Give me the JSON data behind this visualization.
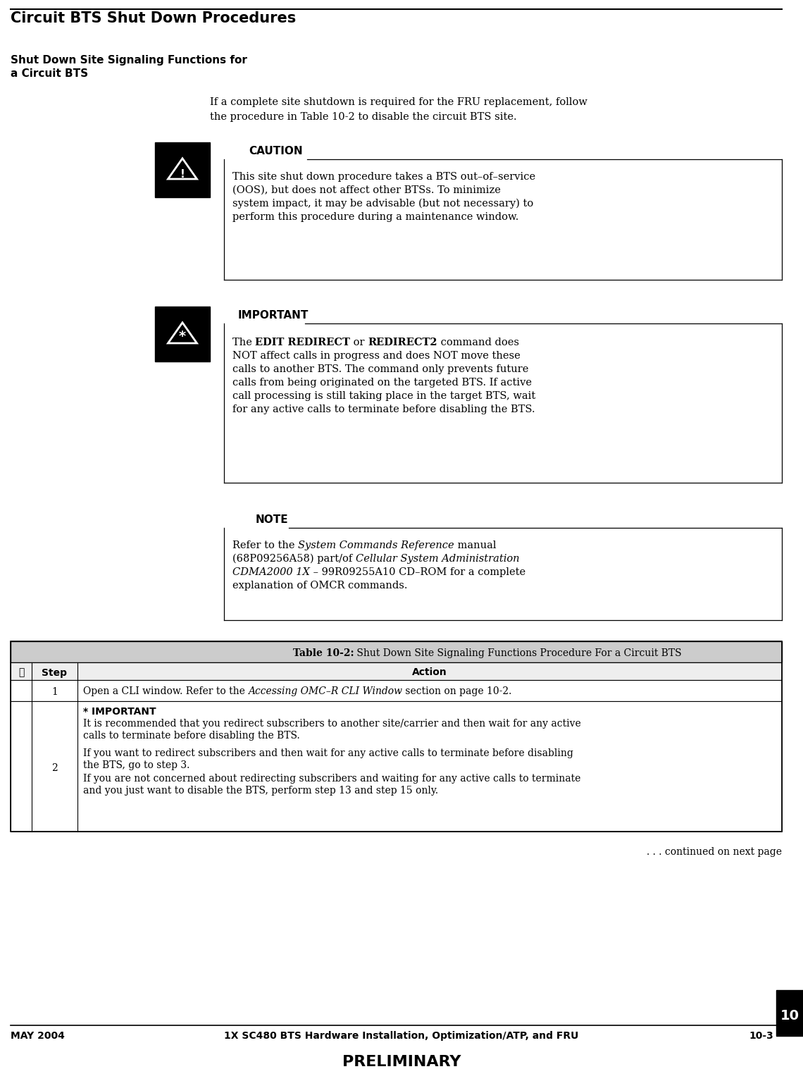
{
  "page_title": "Circuit BTS Shut Down Procedures",
  "section_title_line1": "Shut Down Site Signaling Functions for",
  "section_title_line2": "a Circuit BTS",
  "intro_line1": "If a complete site shutdown is required for the FRU replacement, follow",
  "intro_line2": "the procedure in Table 10-2 to disable the circuit BTS site.",
  "caution_title": "CAUTION",
  "caution_text_lines": [
    "This site shut down procedure takes a BTS out–of–service",
    "(OOS), but does not affect other BTSs. To minimize",
    "system impact, it may be advisable (but not necessary) to",
    "perform this procedure during a maintenance window."
  ],
  "important_title": "IMPORTANT",
  "imp_line1_pre": "The ",
  "imp_line1_bold1": "EDIT REDIRECT",
  "imp_line1_mid": " or ",
  "imp_line1_bold2": "REDIRECT2",
  "imp_line1_post": " command does",
  "imp_lines_rest": [
    "NOT affect calls in progress and does NOT move these",
    "calls to another BTS. The command only prevents future",
    "calls from being originated on the targeted BTS. If active",
    "call processing is still taking place in the target BTS, wait",
    "for any active calls to terminate before disabling the BTS."
  ],
  "note_title": "NOTE",
  "note_line1_pre": "Refer to the ",
  "note_line1_italic": "System Commands Reference",
  "note_line1_post": " manual",
  "note_line2_pre": "(68P09256A58) part/of ",
  "note_line2_italic": "Cellular System Administration",
  "note_line3_italic": "CDMA2000 1X",
  "note_line3_post": " – 99R09255A10 CD–ROM for a complete",
  "note_line4": "explanation of OMCR commands.",
  "table_title_bold": "Table 10-2:",
  "table_title_rest": " Shut Down Site Signaling Functions Procedure For a Circuit BTS",
  "col1_header": "✓",
  "col2_header": "Step",
  "col3_header": "Action",
  "row1_step": "1",
  "row1_pre": "Open a CLI window. Refer to the ",
  "row1_italic": "Accessing OMC–R CLI Window",
  "row1_post": " section on page 10-2.",
  "row2_step": "2",
  "row2_imp_bold": "* IMPORTANT",
  "row2_imp_line1": "It is recommended that you redirect subscribers to another site/carrier and then wait for any active",
  "row2_imp_line2": "calls to terminate before disabling the BTS.",
  "row2_line1": "If you want to redirect subscribers and then wait for any active calls to terminate before disabling",
  "row2_line2": "the BTS, go to step 3.",
  "row2_line3": "If you are not concerned about redirecting subscribers and waiting for any active calls to terminate",
  "row2_line4": "and you just want to disable the BTS, perform step 13 and step 15 only.",
  "continued_text": ". . . continued on next page",
  "footer_left": "MAY 2004",
  "footer_center": "1X SC480 BTS Hardware Installation, Optimization/ATP, and FRU",
  "footer_right": "10-3",
  "footer_prelim": "PRELIMINARY",
  "page_number": "10",
  "bg_color": "#ffffff"
}
